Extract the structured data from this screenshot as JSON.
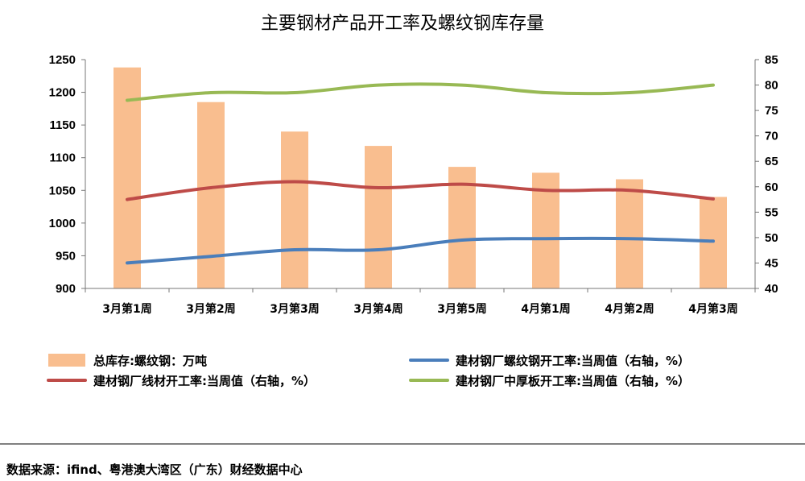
{
  "chart_data": {
    "type": "bar+line",
    "title": "主要钢材产品开工率及螺纹钢库存量",
    "categories": [
      "3月第1周",
      "3月第2周",
      "3月第3周",
      "3月第4周",
      "3月第5周",
      "4月第1周",
      "4月第2周",
      "4月第3周"
    ],
    "y_left": {
      "min": 900,
      "max": 1250,
      "step": 50,
      "ticks": [
        "900",
        "950",
        "1000",
        "1050",
        "1100",
        "1150",
        "1200",
        "1250"
      ]
    },
    "y_right": {
      "min": 40,
      "max": 85,
      "step": 5,
      "ticks": [
        "40",
        "45",
        "50",
        "55",
        "60",
        "65",
        "70",
        "75",
        "80",
        "85"
      ]
    },
    "grid": false,
    "legend_position": "bottom",
    "series": [
      {
        "name": "总库存:螺纹钢：万吨",
        "type": "bar",
        "axis": "left",
        "color": "#f9be8f",
        "values": [
          1238,
          1185,
          1140,
          1118,
          1086,
          1077,
          1067,
          1040
        ]
      },
      {
        "name": "建材钢厂螺纹钢开工率:当周值（右轴，%）",
        "type": "line",
        "axis": "right",
        "color": "#4a7ebb",
        "values": [
          45.0,
          46.3,
          47.6,
          47.6,
          49.5,
          49.8,
          49.8,
          49.3
        ]
      },
      {
        "name": "建材钢厂线材开工率:当周值（右轴，%）",
        "type": "line",
        "axis": "right",
        "color": "#be4b48",
        "values": [
          57.5,
          59.8,
          61.0,
          59.8,
          60.5,
          59.3,
          59.3,
          57.6
        ]
      },
      {
        "name": "建材钢厂中厚板开工率:当周值（右轴，%）",
        "type": "line",
        "axis": "right",
        "color": "#98b954",
        "values": [
          77.0,
          78.5,
          78.5,
          80.0,
          80.0,
          78.5,
          78.5,
          80.0
        ]
      }
    ]
  },
  "footer": {
    "source": "数据来源：ifind、粤港澳大湾区（广东）财经数据中心"
  }
}
